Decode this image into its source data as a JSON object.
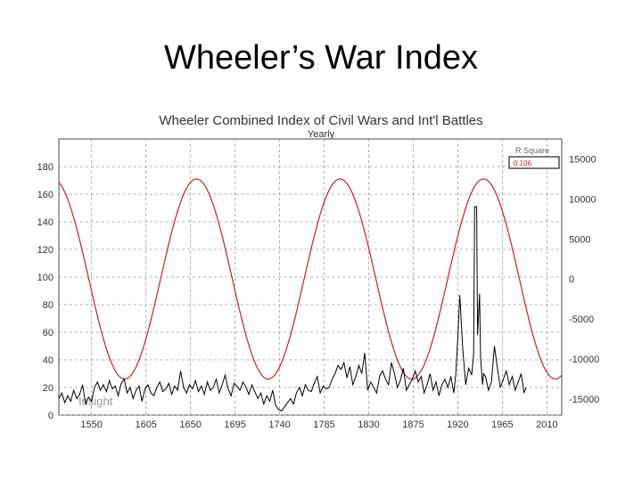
{
  "slide": {
    "title": "Wheeler’s War Index"
  },
  "chart_data": {
    "type": "line",
    "title": "Wheeler Combined Index of Civil Wars and Int'l Battles",
    "subtitle": "Yearly",
    "watermark": "Insight",
    "x_ticks": [
      1550,
      1605,
      1650,
      1695,
      1740,
      1785,
      1830,
      1875,
      1920,
      1965,
      2010
    ],
    "xlim": [
      1517,
      2025
    ],
    "y_left_ticks": [
      0,
      20,
      40,
      60,
      80,
      100,
      120,
      140,
      160,
      180
    ],
    "ylim_left": [
      0,
      200
    ],
    "y_right_ticks": [
      -15000,
      -10000,
      -5000,
      0,
      5000,
      10000,
      15000
    ],
    "ylim_right": [
      -17000,
      17500
    ],
    "grid": true,
    "r_square": {
      "label": "R Square",
      "value": "0.106"
    },
    "colors": {
      "index": "#000000",
      "cycle": "#cc1f1f",
      "grid": "#9a9a9a",
      "rsq_value": "#cc1f1f"
    },
    "series": [
      {
        "axis": "left",
        "color": "#000000",
        "x": [
          1517,
          1520,
          1523,
          1526,
          1529,
          1532,
          1535,
          1538,
          1541,
          1544,
          1547,
          1550,
          1553,
          1556,
          1559,
          1562,
          1565,
          1568,
          1571,
          1574,
          1577,
          1580,
          1583,
          1586,
          1589,
          1592,
          1595,
          1598,
          1601,
          1604,
          1607,
          1610,
          1613,
          1616,
          1619,
          1622,
          1625,
          1628,
          1631,
          1634,
          1637,
          1640,
          1643,
          1646,
          1649,
          1652,
          1655,
          1658,
          1661,
          1664,
          1667,
          1670,
          1673,
          1676,
          1679,
          1682,
          1685,
          1688,
          1691,
          1694,
          1697,
          1700,
          1703,
          1706,
          1709,
          1712,
          1715,
          1718,
          1721,
          1724,
          1727,
          1730,
          1733,
          1736,
          1739,
          1742,
          1745,
          1748,
          1751,
          1754,
          1757,
          1760,
          1763,
          1766,
          1769,
          1772,
          1775,
          1778,
          1781,
          1784,
          1787,
          1790,
          1793,
          1796,
          1799,
          1802,
          1805,
          1808,
          1811,
          1814,
          1817,
          1820,
          1823,
          1826,
          1829,
          1832,
          1835,
          1838,
          1841,
          1844,
          1847,
          1850,
          1853,
          1856,
          1859,
          1862,
          1865,
          1868,
          1871,
          1874,
          1877,
          1880,
          1883,
          1886,
          1889,
          1892,
          1895,
          1898,
          1901,
          1904,
          1907,
          1910,
          1913,
          1916,
          1918,
          1920,
          1922,
          1925,
          1928,
          1931,
          1934,
          1936,
          1937,
          1939,
          1940,
          1942,
          1943,
          1945,
          1946,
          1948,
          1951,
          1954,
          1957,
          1960,
          1963,
          1966,
          1969,
          1972,
          1975,
          1978,
          1981,
          1984,
          1987,
          1989
        ],
        "values": [
          12,
          16,
          9,
          14,
          10,
          18,
          12,
          15,
          22,
          8,
          13,
          10,
          20,
          24,
          18,
          22,
          17,
          25,
          19,
          21,
          14,
          23,
          26,
          16,
          20,
          12,
          18,
          21,
          10,
          19,
          22,
          16,
          14,
          20,
          24,
          17,
          19,
          23,
          15,
          21,
          18,
          32,
          20,
          16,
          22,
          19,
          25,
          17,
          21,
          15,
          24,
          18,
          20,
          26,
          16,
          22,
          29,
          19,
          14,
          23,
          21,
          18,
          24,
          20,
          15,
          22,
          17,
          12,
          16,
          8,
          14,
          10,
          18,
          7,
          4,
          3,
          6,
          9,
          12,
          8,
          16,
          20,
          14,
          22,
          18,
          17,
          23,
          28,
          16,
          21,
          19,
          20,
          26,
          30,
          36,
          33,
          38,
          27,
          35,
          22,
          28,
          36,
          30,
          45,
          18,
          24,
          20,
          16,
          28,
          32,
          26,
          22,
          38,
          30,
          20,
          25,
          34,
          18,
          22,
          26,
          32,
          24,
          28,
          16,
          22,
          30,
          18,
          24,
          14,
          22,
          26,
          20,
          28,
          16,
          30,
          56,
          87,
          48,
          22,
          34,
          29,
          44,
          151,
          151,
          58,
          88,
          42,
          22,
          30,
          28,
          18,
          24,
          50,
          34,
          20,
          26,
          32,
          22,
          28,
          18,
          24,
          30,
          16,
          20
        ]
      },
      {
        "axis": "right",
        "color": "#cc1f1f",
        "model": {
          "type": "sine",
          "amplitude": 12500,
          "period_years": 145,
          "peak_year": 1656
        }
      }
    ]
  }
}
